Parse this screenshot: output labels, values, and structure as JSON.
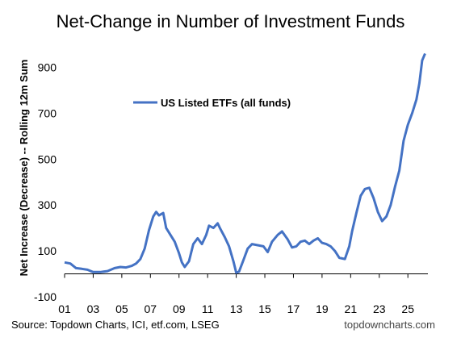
{
  "title": "Net-Change in Number of Investment Funds",
  "ylabel": "Net Increase (Decrease) -- Rolling 12m Sum",
  "source": "Source: Topdown Charts, ICI, etf.com, LSEG",
  "credit": "topdowncharts.com",
  "colors": {
    "line": "#4472C4",
    "axis": "#000000",
    "background": "#ffffff"
  },
  "chart_data": {
    "type": "line",
    "title": "Net-Change in Number of Investment Funds",
    "xlabel": "",
    "ylabel": "Net Increase (Decrease) -- Rolling 12m Sum",
    "xlim": [
      2001,
      2026.4
    ],
    "ylim": [
      -100,
      1000
    ],
    "x_ticks": [
      2001,
      2003,
      2005,
      2007,
      2009,
      2011,
      2013,
      2015,
      2017,
      2019,
      2021,
      2023,
      2025
    ],
    "x_tick_labels": [
      "01",
      "03",
      "05",
      "07",
      "09",
      "11",
      "13",
      "15",
      "17",
      "19",
      "21",
      "23",
      "25"
    ],
    "y_ticks": [
      -100,
      100,
      300,
      500,
      700,
      900
    ],
    "y_tick_labels": [
      "-100",
      "100",
      "300",
      "500",
      "700",
      "900"
    ],
    "grid": false,
    "legend": "top-left",
    "series": [
      {
        "name": "US Listed ETFs (all funds)",
        "color": "#4472C4",
        "x": [
          2001.0,
          2001.4,
          2001.8,
          2002.2,
          2002.6,
          2003.0,
          2003.5,
          2004.0,
          2004.5,
          2004.9,
          2005.3,
          2005.7,
          2006.0,
          2006.3,
          2006.6,
          2006.9,
          2007.2,
          2007.4,
          2007.6,
          2007.9,
          2008.1,
          2008.4,
          2008.7,
          2009.0,
          2009.2,
          2009.4,
          2009.7,
          2010.0,
          2010.3,
          2010.6,
          2010.9,
          2011.1,
          2011.4,
          2011.7,
          2011.9,
          2012.2,
          2012.5,
          2012.8,
          2013.0,
          2013.2,
          2013.5,
          2013.8,
          2014.1,
          2014.5,
          2014.9,
          2015.2,
          2015.5,
          2015.9,
          2016.2,
          2016.6,
          2016.9,
          2017.2,
          2017.5,
          2017.8,
          2018.1,
          2018.4,
          2018.7,
          2019.0,
          2019.3,
          2019.6,
          2019.9,
          2020.2,
          2020.6,
          2020.9,
          2021.1,
          2021.4,
          2021.7,
          2022.0,
          2022.3,
          2022.6,
          2022.9,
          2023.2,
          2023.5,
          2023.8,
          2024.1,
          2024.4,
          2024.7,
          2025.0,
          2025.3,
          2025.6,
          2025.8,
          2026.0,
          2026.2
        ],
        "values": [
          50,
          45,
          25,
          22,
          18,
          8,
          8,
          12,
          25,
          30,
          28,
          35,
          45,
          65,
          110,
          190,
          250,
          270,
          255,
          265,
          200,
          170,
          140,
          90,
          50,
          30,
          55,
          130,
          155,
          130,
          170,
          210,
          200,
          220,
          195,
          160,
          120,
          55,
          5,
          10,
          60,
          110,
          130,
          125,
          120,
          95,
          140,
          170,
          185,
          150,
          115,
          120,
          140,
          145,
          130,
          145,
          155,
          135,
          130,
          120,
          100,
          70,
          65,
          120,
          185,
          265,
          340,
          370,
          375,
          330,
          270,
          230,
          250,
          300,
          380,
          450,
          580,
          650,
          700,
          760,
          830,
          930,
          960
        ]
      }
    ]
  }
}
